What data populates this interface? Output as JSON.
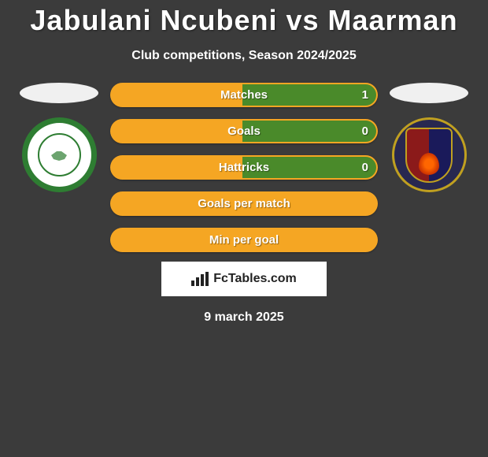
{
  "title": "Jabulani Ncubeni vs Maarman",
  "subtitle": "Club competitions, Season 2024/2025",
  "date": "9 march 2025",
  "watermark": "FcTables.com",
  "colors": {
    "background": "#3b3b3b",
    "bar_base": "#f5a623",
    "bar_fill": "#4a8a2a",
    "text": "#ffffff"
  },
  "player_left": {
    "club_name": "Bloemfontein Celtic",
    "badge_primary": "#2e7d32",
    "badge_bg": "#ffffff"
  },
  "player_right": {
    "club_name": "Chippa United",
    "badge_primary": "#282850",
    "badge_accent": "#c0a020"
  },
  "stats": [
    {
      "label": "Matches",
      "left_value": null,
      "right_value": "1",
      "left_pct": 0,
      "right_pct": 50
    },
    {
      "label": "Goals",
      "left_value": null,
      "right_value": "0",
      "left_pct": 0,
      "right_pct": 50
    },
    {
      "label": "Hattricks",
      "left_value": null,
      "right_value": "0",
      "left_pct": 0,
      "right_pct": 50
    },
    {
      "label": "Goals per match",
      "left_value": null,
      "right_value": null,
      "left_pct": 0,
      "right_pct": 0
    },
    {
      "label": "Min per goal",
      "left_value": null,
      "right_value": null,
      "left_pct": 0,
      "right_pct": 0
    }
  ]
}
